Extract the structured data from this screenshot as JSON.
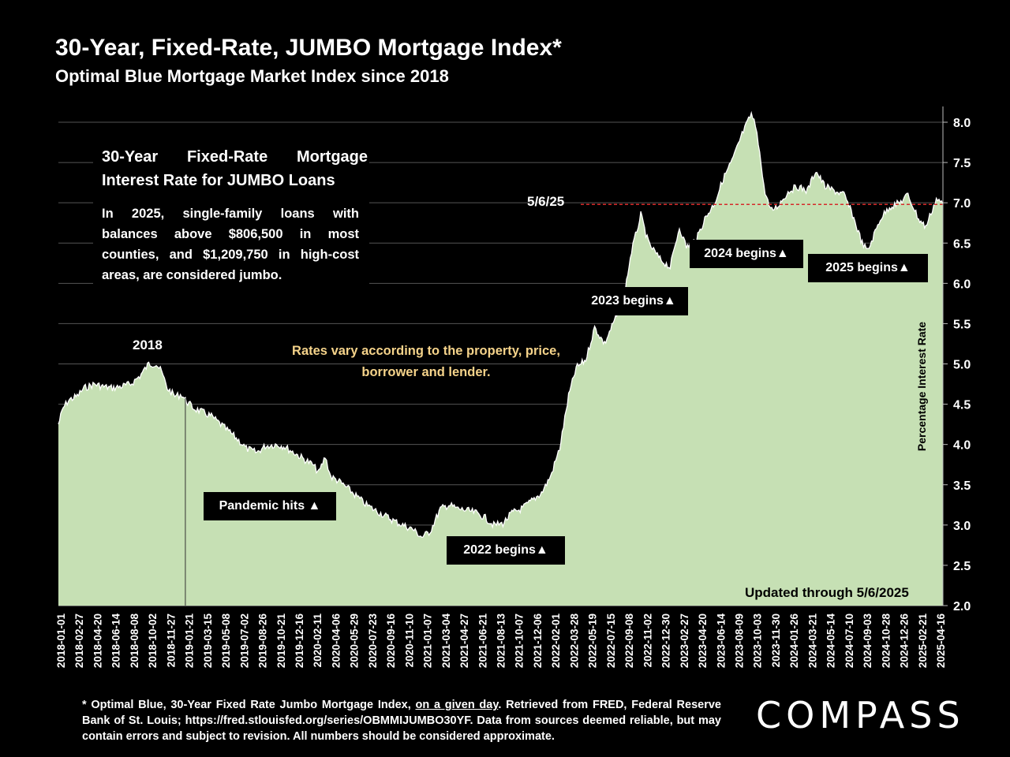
{
  "title": "30-Year, Fixed-Rate, JUMBO Mortgage Index*",
  "subtitle": "Optimal Blue Mortgage Market Index since 2018",
  "infobox": {
    "heading": "30-Year Fixed-Rate Mortgage Interest Rate for JUMBO Loans",
    "body": "In 2025, single-family loans with balances above $806,500 in most counties, and $1,209,750 in high-cost areas, are considered jumbo."
  },
  "note": "Rates vary according to the property, price, borrower and lender.",
  "updated": "Updated through 5/6/2025",
  "footnote": {
    "pre": "* Optimal Blue, 30-Year Fixed Rate Jumbo Mortgage Index, ",
    "underlined": "on a given day",
    "post": ". Retrieved from FRED, Federal Reserve Bank of St. Louis; https://fred.stlouisfed.org/series/OBMMIJUMBO30YF. Data from sources deemed reliable, but may contain errors and subject to revision. All numbers should be considered approximate."
  },
  "logo": "COMPASS",
  "colors": {
    "area_fill": "#c6e0b4",
    "line": "#ffffff",
    "reference_line": "#d62a2a",
    "note_text": "#f5d38a",
    "background": "#000000"
  },
  "chart_data": {
    "type": "area",
    "title": "30-Year, Fixed-Rate, JUMBO Mortgage Index*",
    "subtitle": "Optimal Blue Mortgage Market Index since 2018",
    "xlabel": "",
    "ylabel": "Percentage Interest Rate",
    "ylim": [
      2.0,
      8.0
    ],
    "yticks": [
      "2.0",
      "2.5",
      "3.0",
      "3.5",
      "4.0",
      "4.5",
      "5.0",
      "5.5",
      "6.0",
      "6.5",
      "7.0",
      "7.5",
      "8.0"
    ],
    "grid": true,
    "x_ticks": [
      "2018-01-01",
      "2018-02-27",
      "2018-04-20",
      "2018-06-14",
      "2018-08-08",
      "2018-10-02",
      "2018-11-27",
      "2019-01-21",
      "2019-03-15",
      "2019-05-08",
      "2019-07-02",
      "2019-08-26",
      "2019-10-21",
      "2019-12-16",
      "2020-02-11",
      "2020-04-06",
      "2020-05-29",
      "2020-07-23",
      "2020-09-16",
      "2020-11-10",
      "2021-01-07",
      "2021-03-04",
      "2021-04-27",
      "2021-06-21",
      "2021-08-13",
      "2021-10-07",
      "2021-12-06",
      "2022-02-01",
      "2022-03-28",
      "2022-05-19",
      "2022-07-15",
      "2022-09-08",
      "2022-11-02",
      "2022-12-30",
      "2023-02-27",
      "2023-04-20",
      "2023-06-14",
      "2023-08-09",
      "2023-10-03",
      "2023-11-30",
      "2024-01-26",
      "2024-03-21",
      "2024-05-14",
      "2024-07-10",
      "2024-09-03",
      "2024-10-28",
      "2024-12-26",
      "2025-02-21",
      "2025-04-16"
    ],
    "series": [
      {
        "x": [
          "2018-01-01",
          "2018-01-15",
          "2018-02-01",
          "2018-02-27",
          "2018-03-20",
          "2018-04-20",
          "2018-05-15",
          "2018-06-14",
          "2018-07-10",
          "2018-08-08",
          "2018-09-05",
          "2018-10-02",
          "2018-10-25",
          "2018-11-10",
          "2018-11-27",
          "2018-12-20",
          "2019-01-10",
          "2019-01-21",
          "2019-02-15",
          "2019-03-15",
          "2019-04-10",
          "2019-05-08",
          "2019-06-05",
          "2019-07-02",
          "2019-07-25",
          "2019-08-26",
          "2019-09-20",
          "2019-10-21",
          "2019-11-15",
          "2019-12-16",
          "2020-01-15",
          "2020-02-11",
          "2020-03-01",
          "2020-03-20",
          "2020-04-06",
          "2020-04-28",
          "2020-05-29",
          "2020-06-25",
          "2020-07-23",
          "2020-08-20",
          "2020-09-16",
          "2020-10-15",
          "2020-11-10",
          "2020-12-10",
          "2021-01-07",
          "2021-02-01",
          "2021-03-04",
          "2021-03-30",
          "2021-04-27",
          "2021-05-25",
          "2021-06-21",
          "2021-07-15",
          "2021-08-13",
          "2021-09-10",
          "2021-10-07",
          "2021-11-05",
          "2021-12-06",
          "2022-01-05",
          "2022-02-01",
          "2022-03-01",
          "2022-03-28",
          "2022-04-20",
          "2022-05-19",
          "2022-06-15",
          "2022-07-15",
          "2022-08-10",
          "2022-09-08",
          "2022-10-05",
          "2022-11-02",
          "2022-11-25",
          "2022-12-30",
          "2023-01-30",
          "2023-02-27",
          "2023-03-20",
          "2023-04-20",
          "2023-05-15",
          "2023-06-14",
          "2023-07-10",
          "2023-08-09",
          "2023-09-05",
          "2023-10-03",
          "2023-10-20",
          "2023-11-10",
          "2023-11-30",
          "2023-12-20",
          "2024-01-26",
          "2024-02-20",
          "2024-03-21",
          "2024-04-15",
          "2024-05-14",
          "2024-06-10",
          "2024-07-10",
          "2024-08-05",
          "2024-09-03",
          "2024-09-20",
          "2024-10-28",
          "2024-11-25",
          "2024-12-26",
          "2025-01-20",
          "2025-02-21",
          "2025-03-15",
          "2025-04-16",
          "2025-05-06"
        ],
        "values": [
          4.25,
          4.45,
          4.55,
          4.6,
          4.7,
          4.75,
          4.72,
          4.7,
          4.72,
          4.75,
          4.85,
          5.0,
          5.0,
          4.9,
          4.7,
          4.6,
          4.62,
          4.55,
          4.45,
          4.4,
          4.35,
          4.25,
          4.15,
          4.05,
          3.95,
          3.9,
          3.98,
          4.0,
          3.98,
          3.9,
          3.82,
          3.75,
          3.65,
          3.85,
          3.6,
          3.55,
          3.45,
          3.35,
          3.25,
          3.18,
          3.12,
          3.05,
          3.0,
          2.95,
          2.85,
          2.92,
          3.2,
          3.25,
          3.2,
          3.18,
          3.15,
          3.1,
          3.0,
          3.02,
          3.15,
          3.2,
          3.3,
          3.4,
          3.6,
          3.95,
          4.6,
          4.95,
          5.05,
          5.45,
          5.25,
          5.5,
          5.75,
          6.4,
          6.85,
          6.5,
          6.3,
          6.2,
          6.7,
          6.45,
          6.55,
          6.8,
          7.0,
          7.3,
          7.55,
          7.85,
          8.1,
          7.9,
          7.2,
          6.9,
          6.95,
          7.15,
          7.2,
          7.15,
          7.4,
          7.2,
          7.15,
          7.1,
          6.85,
          6.5,
          6.4,
          6.8,
          6.95,
          7.0,
          7.1,
          6.8,
          6.7,
          7.05,
          6.98
        ]
      }
    ],
    "reference_line": {
      "label": "5/6/25",
      "value": 6.98
    },
    "vertical_marker": "2019-01-21",
    "annotations": [
      {
        "text": "2018",
        "x": "2018-10-02"
      },
      {
        "text": "Pandemic hits ▲",
        "x": "2020-03-20"
      },
      {
        "text": "2022 begins▲",
        "x": "2022-01-03"
      },
      {
        "text": "2023 begins▲",
        "x": "2023-01-03"
      },
      {
        "text": "2024 begins▲",
        "x": "2024-01-02"
      },
      {
        "text": "2025 begins▲",
        "x": "2025-01-02"
      }
    ]
  }
}
